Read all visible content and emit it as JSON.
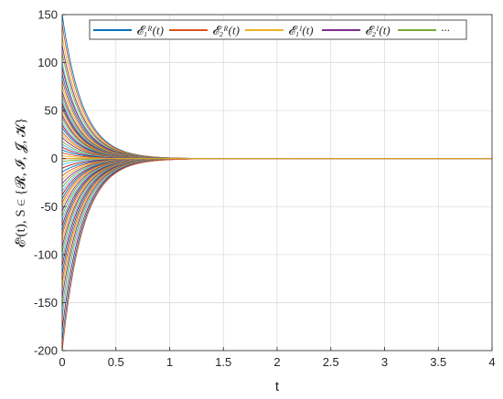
{
  "chart_data": {
    "type": "line",
    "xlabel": "t",
    "ylabel": "𝓔ˢ(t), S ∈ {𝓡, 𝓘, 𝓙, 𝓚}",
    "xlim": [
      0,
      4
    ],
    "ylim": [
      -200,
      150
    ],
    "xticks": [
      "0",
      "0.5",
      "1",
      "1.5",
      "2",
      "2.5",
      "3",
      "3.5",
      "4"
    ],
    "yticks": [
      "-200",
      "-150",
      "-100",
      "-50",
      "0",
      "50",
      "100",
      "150"
    ],
    "grid": true,
    "legend_position": "top",
    "decay_rate": 5.2,
    "legend": [
      {
        "label": "𝓔₁ᴿ(t)",
        "color": "#0072BD"
      },
      {
        "label": "𝓔₂ᴿ(t)",
        "color": "#D95319"
      },
      {
        "label": "𝓔₁ᴵ(t)",
        "color": "#EDB120"
      },
      {
        "label": "𝓔₂ᴵ(t)",
        "color": "#7E2F8E"
      },
      {
        "label": "···",
        "color": "#77AC30"
      }
    ],
    "palette": [
      "#0072BD",
      "#D95319",
      "#EDB120",
      "#7E2F8E",
      "#77AC30",
      "#4DBEEE",
      "#A2142F"
    ],
    "series": [
      {
        "values_at_t0": 150
      },
      {
        "values_at_t0": 140
      },
      {
        "values_at_t0": 128
      },
      {
        "values_at_t0": 118
      },
      {
        "values_at_t0": 110
      },
      {
        "values_at_t0": 100
      },
      {
        "values_at_t0": 95
      },
      {
        "values_at_t0": 88
      },
      {
        "values_at_t0": 82
      },
      {
        "values_at_t0": 76
      },
      {
        "values_at_t0": 70
      },
      {
        "values_at_t0": 66
      },
      {
        "values_at_t0": 62
      },
      {
        "values_at_t0": 58
      },
      {
        "values_at_t0": 55
      },
      {
        "values_at_t0": 52
      },
      {
        "values_at_t0": 48
      },
      {
        "values_at_t0": 45
      },
      {
        "values_at_t0": 42
      },
      {
        "values_at_t0": 38
      },
      {
        "values_at_t0": 35
      },
      {
        "values_at_t0": 32
      },
      {
        "values_at_t0": 28
      },
      {
        "values_at_t0": 25
      },
      {
        "values_at_t0": 22
      },
      {
        "values_at_t0": 18
      },
      {
        "values_at_t0": 15
      },
      {
        "values_at_t0": 12
      },
      {
        "values_at_t0": 9
      },
      {
        "values_at_t0": 6
      },
      {
        "values_at_t0": 3
      },
      {
        "values_at_t0": 0
      },
      {
        "values_at_t0": -3
      },
      {
        "values_at_t0": -6
      },
      {
        "values_at_t0": -10
      },
      {
        "values_at_t0": -14
      },
      {
        "values_at_t0": -18
      },
      {
        "values_at_t0": -22
      },
      {
        "values_at_t0": -26
      },
      {
        "values_at_t0": -30
      },
      {
        "values_at_t0": -34
      },
      {
        "values_at_t0": -38
      },
      {
        "values_at_t0": -42
      },
      {
        "values_at_t0": -46
      },
      {
        "values_at_t0": -50
      },
      {
        "values_at_t0": -55
      },
      {
        "values_at_t0": -60
      },
      {
        "values_at_t0": -65
      },
      {
        "values_at_t0": -70
      },
      {
        "values_at_t0": -75
      },
      {
        "values_at_t0": -80
      },
      {
        "values_at_t0": -86
      },
      {
        "values_at_t0": -92
      },
      {
        "values_at_t0": -98
      },
      {
        "values_at_t0": -105
      },
      {
        "values_at_t0": -112
      },
      {
        "values_at_t0": -120
      },
      {
        "values_at_t0": -128
      },
      {
        "values_at_t0": -136
      },
      {
        "values_at_t0": -145
      },
      {
        "values_at_t0": -155
      },
      {
        "values_at_t0": -165
      },
      {
        "values_at_t0": -178
      },
      {
        "values_at_t0": -190
      },
      {
        "values_at_t0": -200
      }
    ]
  }
}
